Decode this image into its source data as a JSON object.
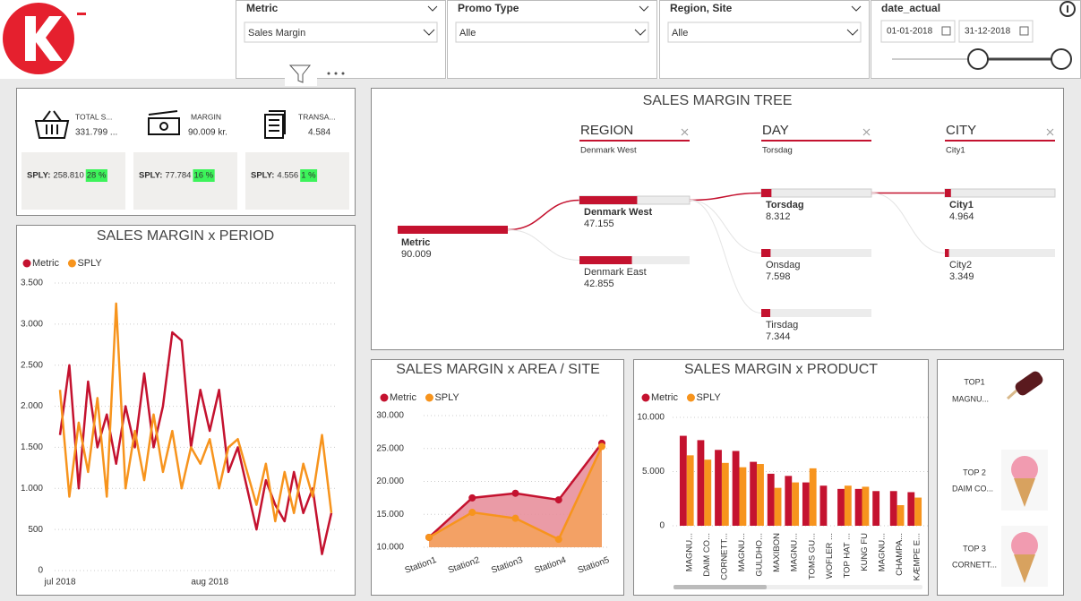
{
  "filters": [
    {
      "label": "Metric",
      "value": "Sales Margin"
    },
    {
      "label": "Promo Type",
      "value": "Alle"
    },
    {
      "label": "Region, Site",
      "value": "Alle"
    }
  ],
  "date_filter": {
    "label": "date_actual",
    "start": "01-01-2018",
    "end": "31-12-2018"
  },
  "kpis": [
    {
      "label": "TOTAL S...",
      "value": "331.799 ...",
      "sply_label": "SPLY:",
      "sply": "258.810",
      "change": "28 %"
    },
    {
      "label": "MARGIN",
      "value": "90.009 kr.",
      "sply_label": "SPLY:",
      "sply": "77.784",
      "change": "16 %"
    },
    {
      "label": "TRANSA...",
      "value": "4.584",
      "sply_label": "SPLY:",
      "sply": "4.556",
      "change": "1 %"
    }
  ],
  "tree": {
    "title": "SALES MARGIN TREE",
    "root": {
      "label": "Metric",
      "value": 90009,
      "value_label": "90.009"
    },
    "levels": [
      {
        "name": "REGION",
        "selected": "Denmark West",
        "nodes": [
          {
            "label": "Denmark West",
            "value": 47155,
            "value_label": "47.155"
          },
          {
            "label": "Denmark East",
            "value": 42855,
            "value_label": "42.855"
          }
        ]
      },
      {
        "name": "DAY",
        "selected": "Torsdag",
        "nodes": [
          {
            "label": "Torsdag",
            "value": 8312,
            "value_label": "8.312"
          },
          {
            "label": "Onsdag",
            "value": 7598,
            "value_label": "7.598"
          },
          {
            "label": "Tirsdag",
            "value": 7344,
            "value_label": "7.344"
          }
        ]
      },
      {
        "name": "CITY",
        "selected": "City1",
        "nodes": [
          {
            "label": "City1",
            "value": 4964,
            "value_label": "4.964"
          },
          {
            "label": "City2",
            "value": 3349,
            "value_label": "3.349"
          }
        ]
      }
    ]
  },
  "top_products": [
    {
      "rank": "TOP1",
      "name": "MAGNU..."
    },
    {
      "rank": "TOP 2",
      "name": "DAIM CO..."
    },
    {
      "rank": "TOP 3",
      "name": "CORNETT..."
    }
  ],
  "chart_data": [
    {
      "type": "line",
      "title": "SALES MARGIN x PERIOD",
      "categories": [
        "jul 2018",
        null,
        null,
        null,
        null,
        null,
        null,
        null,
        null,
        null,
        null,
        null,
        null,
        null,
        null,
        null,
        "aug 2018",
        null,
        null,
        null,
        null,
        null,
        null,
        null,
        null,
        null,
        null,
        null,
        null,
        null
      ],
      "series": [
        {
          "name": "Metric",
          "color": "#c4122f",
          "values": [
            1650,
            2500,
            1000,
            2300,
            1500,
            1900,
            1300,
            2000,
            1500,
            2400,
            1500,
            2000,
            2900,
            2800,
            1500,
            2200,
            1700,
            2200,
            1200,
            1500,
            1000,
            500,
            1100,
            800,
            600,
            1200,
            700,
            1000,
            200,
            700
          ]
        },
        {
          "name": "SPLY",
          "color": "#f7941d",
          "values": [
            2200,
            900,
            1800,
            1200,
            2100,
            900,
            3250,
            1000,
            1700,
            1100,
            1900,
            1200,
            1700,
            1000,
            1500,
            1300,
            1600,
            1000,
            1500,
            1600,
            1200,
            800,
            1300,
            600,
            1200,
            700,
            1300,
            900,
            1650,
            700
          ]
        }
      ],
      "ylim": [
        0,
        3500
      ],
      "yticks": [
        0,
        500,
        {
          "value": 1000,
          "label": "1.000"
        },
        {
          "value": 1500,
          "label": "1.500"
        },
        {
          "value": 2000,
          "label": "2.000"
        },
        {
          "value": 2500,
          "label": "2.500"
        },
        {
          "value": 3000,
          "label": "3.000"
        },
        {
          "value": 3500,
          "label": "3.500"
        }
      ],
      "grid": true
    },
    {
      "type": "area",
      "title": "SALES MARGIN x AREA / SITE",
      "categories": [
        "Station1",
        "Station2",
        "Station3",
        "Station4",
        "Station5"
      ],
      "series": [
        {
          "name": "Metric",
          "color": "#c4122f",
          "values": [
            11500,
            17500,
            18200,
            17200,
            25800
          ]
        },
        {
          "name": "SPLY",
          "color": "#f7941d",
          "values": [
            11500,
            15300,
            14400,
            11200,
            25300
          ]
        }
      ],
      "ylim": [
        10000,
        30000
      ],
      "yticks": [
        {
          "value": 10000,
          "label": "10.000"
        },
        {
          "value": 15000,
          "label": "15.000"
        },
        {
          "value": 20000,
          "label": "20.000"
        },
        {
          "value": 25000,
          "label": "25.000"
        },
        {
          "value": 30000,
          "label": "30.000"
        }
      ],
      "grid": true
    },
    {
      "type": "bar",
      "title": "SALES MARGIN x PRODUCT",
      "categories": [
        "MAGNU...",
        "DAIM CO...",
        "CORNETT...",
        "MAGNU...",
        "GULDHO...",
        "MAXIBON",
        "MAGNU...",
        "TOMS GU...",
        "WOFLER ...",
        "TOP HAT ...",
        "KUNG FU",
        "MAGNU...",
        "CHAMPA...",
        "KÆMPE E..."
      ],
      "series": [
        {
          "name": "Metric",
          "color": "#c4122f",
          "values": [
            8300,
            7900,
            7000,
            6900,
            5900,
            4800,
            4600,
            4000,
            3700,
            3400,
            3400,
            3200,
            3200,
            3100
          ]
        },
        {
          "name": "SPLY",
          "color": "#f7941d",
          "values": [
            6500,
            6100,
            5800,
            5400,
            5700,
            3500,
            4000,
            5300,
            null,
            3700,
            3600,
            null,
            1900,
            2600
          ]
        }
      ],
      "ylim": [
        0,
        10000
      ],
      "yticks": [
        0,
        {
          "value": 5000,
          "label": "5.000"
        },
        {
          "value": 10000,
          "label": "10.000"
        }
      ],
      "grid": true
    }
  ]
}
